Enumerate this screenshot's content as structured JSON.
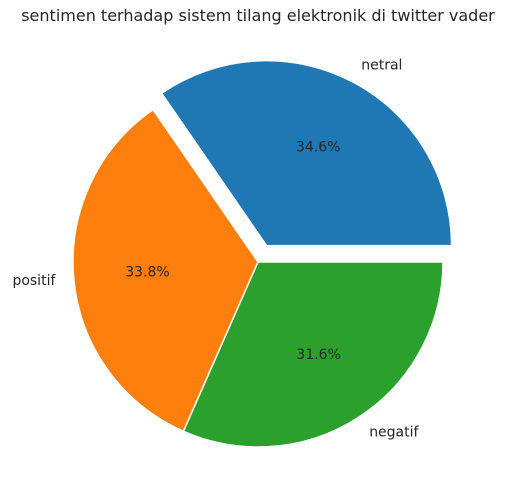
{
  "chart_data": {
    "type": "pie",
    "title": "sentimen terhadap sistem tilang elektronik di twitter vader",
    "slices": [
      {
        "label": "netral",
        "value": 34.6,
        "pct_label": "34.6%",
        "color": "#1f77b4",
        "explode": 0.1
      },
      {
        "label": "positif",
        "value": 33.8,
        "pct_label": "33.8%",
        "color": "#ff7f0e",
        "explode": 0
      },
      {
        "label": "negatif",
        "value": 31.6,
        "pct_label": "31.6%",
        "color": "#2ca02c",
        "explode": 0
      }
    ],
    "start_angle_deg": 0,
    "direction": "counterclockwise"
  }
}
